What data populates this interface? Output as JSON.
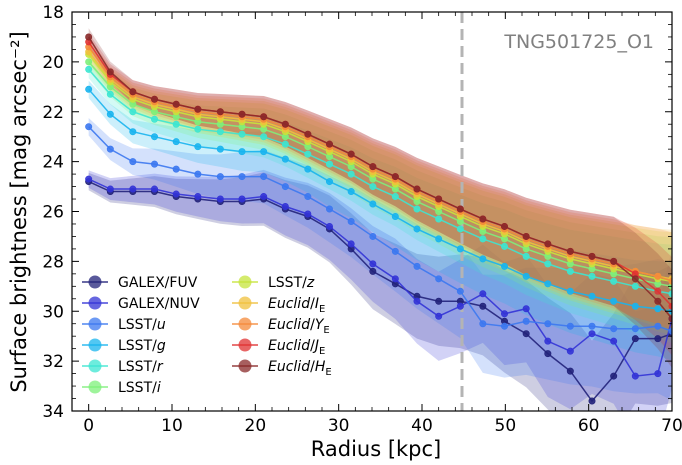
{
  "chart_data": {
    "type": "line",
    "ylabel": "Surface brightness [mag arcsec⁻²]",
    "xlabel": "Radius [kpc]",
    "annotation": "TNG501725_O1",
    "xlim": [
      -2,
      70
    ],
    "ylim": [
      34,
      18
    ],
    "y_inverted": true,
    "xticks": [
      0,
      10,
      20,
      30,
      40,
      50,
      60,
      70
    ],
    "yticks": [
      18,
      20,
      22,
      24,
      26,
      28,
      30,
      32,
      34
    ],
    "vline_x": 44.8,
    "grid": false,
    "legend_position": "lower-left",
    "x": [
      0,
      2.6,
      5.3,
      7.9,
      10.5,
      13.1,
      15.8,
      18.4,
      21.0,
      23.6,
      26.3,
      28.9,
      31.5,
      34.1,
      36.8,
      39.4,
      42.0,
      44.6,
      47.3,
      49.9,
      52.5,
      55.1,
      57.8,
      60.4,
      63.0,
      65.6,
      68.3,
      70
    ],
    "series": [
      {
        "name": "GALEX/FUV",
        "color": "#22227a",
        "values": [
          24.8,
          25.2,
          25.2,
          25.2,
          25.4,
          25.5,
          25.6,
          25.6,
          25.5,
          25.9,
          26.2,
          26.7,
          27.5,
          28.4,
          28.9,
          29.4,
          29.6,
          29.6,
          29.8,
          30.4,
          30.9,
          31.7,
          32.4,
          33.6,
          32.6,
          31.1,
          31.1,
          30.9
        ]
      },
      {
        "name": "GALEX/NUV",
        "color": "#3333d6",
        "values": [
          24.7,
          25.1,
          25.1,
          25.1,
          25.3,
          25.4,
          25.5,
          25.5,
          25.4,
          25.8,
          26.1,
          26.6,
          27.3,
          28.1,
          28.7,
          29.6,
          30.2,
          29.8,
          29.3,
          30.1,
          29.9,
          31.2,
          31.6,
          30.9,
          31.2,
          32.6,
          32.5,
          30.3
        ]
      },
      {
        "name": "LSST/u",
        "color": "#3c78f0",
        "values": [
          22.6,
          23.5,
          24.0,
          24.1,
          24.3,
          24.5,
          24.6,
          24.6,
          24.6,
          25.0,
          25.4,
          25.9,
          26.4,
          27.0,
          27.6,
          28.2,
          28.7,
          29.2,
          30.5,
          30.6,
          30.4,
          30.5,
          30.6,
          30.6,
          30.7,
          30.7,
          30.6,
          30.8
        ]
      },
      {
        "name": "LSST/g",
        "color": "#18b4ee",
        "values": [
          21.1,
          22.1,
          22.8,
          23.0,
          23.2,
          23.4,
          23.5,
          23.6,
          23.6,
          23.9,
          24.3,
          24.8,
          25.2,
          25.7,
          26.2,
          26.7,
          27.1,
          27.5,
          27.9,
          28.2,
          28.6,
          28.9,
          29.2,
          29.4,
          29.6,
          29.8,
          29.9,
          30.0
        ]
      },
      {
        "name": "LSST/r",
        "color": "#3ce6d2",
        "values": [
          20.3,
          21.3,
          22.0,
          22.3,
          22.5,
          22.7,
          22.8,
          22.9,
          23.0,
          23.3,
          23.7,
          24.1,
          24.5,
          25.0,
          25.4,
          25.9,
          26.3,
          26.7,
          27.1,
          27.4,
          27.8,
          28.1,
          28.4,
          28.6,
          28.8,
          29.0,
          29.2,
          29.3
        ]
      },
      {
        "name": "LSST/i",
        "color": "#7ef07a",
        "values": [
          20.0,
          21.0,
          21.7,
          22.0,
          22.2,
          22.4,
          22.5,
          22.6,
          22.7,
          23.0,
          23.4,
          23.8,
          24.2,
          24.7,
          25.1,
          25.6,
          26.0,
          26.4,
          26.8,
          27.1,
          27.5,
          27.8,
          28.1,
          28.3,
          28.5,
          28.7,
          28.9,
          29.0
        ]
      },
      {
        "name": "LSST/z",
        "color": "#c6e43c",
        "values": [
          19.7,
          20.8,
          21.5,
          21.8,
          22.0,
          22.2,
          22.3,
          22.4,
          22.5,
          22.8,
          23.2,
          23.6,
          24.0,
          24.5,
          24.9,
          25.4,
          25.8,
          26.2,
          26.6,
          26.9,
          27.3,
          27.6,
          27.9,
          28.1,
          28.3,
          28.5,
          28.7,
          28.8
        ]
      },
      {
        "name": "Euclid/IE",
        "label_italic": "Euclid",
        "label_rest": "/I",
        "label_sub": "E",
        "color": "#f0c03c",
        "values": [
          19.6,
          20.7,
          21.4,
          21.7,
          21.9,
          22.1,
          22.2,
          22.3,
          22.4,
          22.7,
          23.1,
          23.5,
          23.9,
          24.4,
          24.8,
          25.3,
          25.7,
          26.1,
          26.5,
          26.8,
          27.2,
          27.5,
          27.8,
          28.0,
          28.2,
          28.4,
          28.6,
          28.7
        ]
      },
      {
        "name": "Euclid/YE",
        "label_italic": "Euclid",
        "label_rest": "/Y",
        "label_sub": "E",
        "color": "#f48a3a",
        "values": [
          19.4,
          20.6,
          21.3,
          21.6,
          21.8,
          22.0,
          22.1,
          22.2,
          22.3,
          22.6,
          23.0,
          23.4,
          23.8,
          24.3,
          24.7,
          25.2,
          25.6,
          26.0,
          26.4,
          26.7,
          27.1,
          27.4,
          27.7,
          27.9,
          28.1,
          28.4,
          28.6,
          28.8
        ]
      },
      {
        "name": "Euclid/JE",
        "label_italic": "Euclid",
        "label_rest": "/J",
        "label_sub": "E",
        "color": "#e03232",
        "values": [
          19.2,
          20.5,
          21.2,
          21.5,
          21.7,
          21.9,
          22.0,
          22.1,
          22.2,
          22.5,
          22.9,
          23.3,
          23.7,
          24.2,
          24.6,
          25.1,
          25.5,
          25.9,
          26.3,
          26.6,
          27.0,
          27.3,
          27.6,
          27.8,
          28.0,
          28.5,
          29.2,
          29.8
        ]
      },
      {
        "name": "Euclid/HE",
        "label_italic": "Euclid",
        "label_rest": "/H",
        "label_sub": "E",
        "color": "#8a2a2a",
        "values": [
          19.0,
          20.4,
          21.2,
          21.5,
          21.7,
          21.9,
          22.0,
          22.1,
          22.2,
          22.5,
          22.9,
          23.3,
          23.7,
          24.2,
          24.6,
          25.1,
          25.5,
          25.9,
          26.3,
          26.6,
          27.0,
          27.3,
          27.6,
          27.8,
          28.0,
          28.7,
          29.6,
          30.3
        ]
      }
    ]
  }
}
